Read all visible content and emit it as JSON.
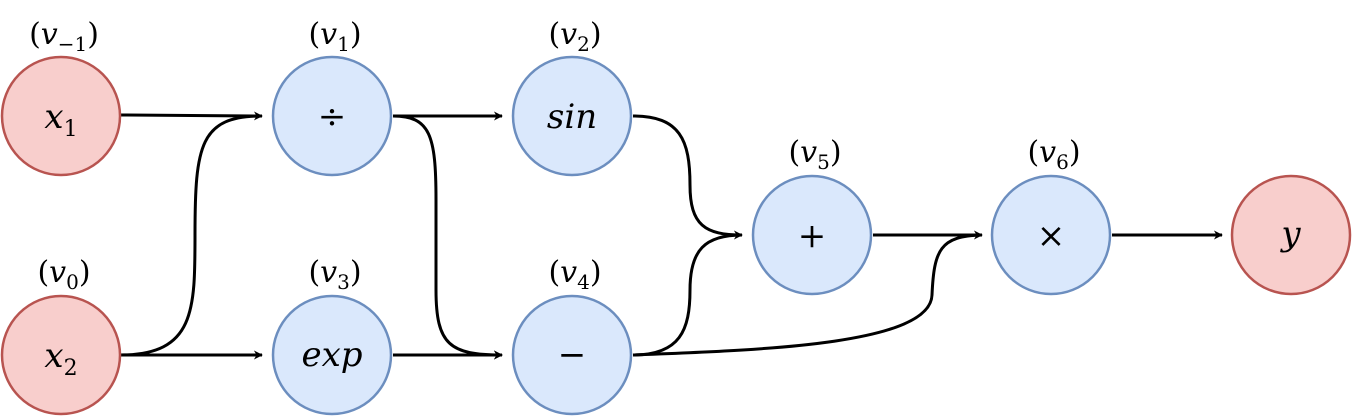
{
  "colors": {
    "input_fill": "#f8cecc",
    "input_stroke": "#b85450",
    "op_fill": "#dae8fc",
    "op_stroke": "#6c8ebf",
    "edge": "#000000"
  },
  "nodes": {
    "x1": {
      "label": "x",
      "sub": "1",
      "tag": "v",
      "tag_sub": "−1"
    },
    "x2": {
      "label": "x",
      "sub": "2",
      "tag": "v",
      "tag_sub": "0"
    },
    "div": {
      "label": "÷",
      "tag": "v",
      "tag_sub": "1"
    },
    "sin": {
      "label": "sin",
      "tag": "v",
      "tag_sub": "2"
    },
    "exp": {
      "label": "exp",
      "tag": "v",
      "tag_sub": "3"
    },
    "sub": {
      "label": "−",
      "tag": "v",
      "tag_sub": "4"
    },
    "add": {
      "label": "+",
      "tag": "v",
      "tag_sub": "5"
    },
    "mul": {
      "label": "×",
      "tag": "v",
      "tag_sub": "6"
    },
    "y": {
      "label": "y"
    }
  }
}
